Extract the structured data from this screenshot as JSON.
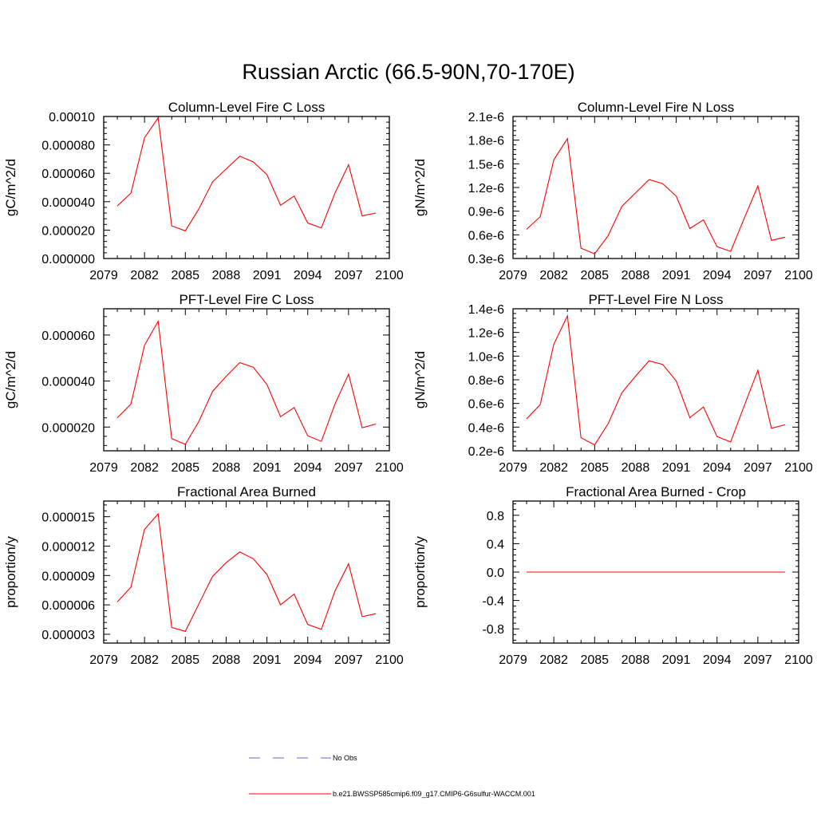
{
  "figure_title": "Russian Arctic (66.5-90N,70-170E)",
  "colors": {
    "series": "#ff0000",
    "no_obs": "#6666cc",
    "axis": "#000000"
  },
  "legend": [
    {
      "label": "No Obs",
      "style": "dashed",
      "color": "#6666cc"
    },
    {
      "label": "b.e21.BWSSP585cmip6.f09_g17.CMIP6-G6sulfur-WACCM.001",
      "style": "solid",
      "color": "#ff0000"
    }
  ],
  "chart_data": [
    {
      "type": "line",
      "title": "Column-Level Fire C Loss",
      "ylabel": "gC/m^2/d",
      "xlim": [
        2079,
        2100
      ],
      "ylim": [
        0,
        0.0001
      ],
      "xticks": [
        "2079",
        "2082",
        "2085",
        "2088",
        "2091",
        "2094",
        "2097",
        "2100"
      ],
      "yticks": [
        {
          "v": 0,
          "label": "0.000000"
        },
        {
          "v": 2e-05,
          "label": "0.000020"
        },
        {
          "v": 4e-05,
          "label": "0.000040"
        },
        {
          "v": 6e-05,
          "label": "0.000060"
        },
        {
          "v": 8e-05,
          "label": "0.000080"
        },
        {
          "v": 0.0001,
          "label": "0.00010"
        }
      ],
      "x": [
        2080,
        2081,
        2082,
        2083,
        2084,
        2085,
        2086,
        2087,
        2088,
        2089,
        2090,
        2091,
        2092,
        2093,
        2094,
        2095,
        2096,
        2097,
        2098,
        2099
      ],
      "series": [
        {
          "values": [
            3.7e-05,
            4.6e-05,
            8.5e-05,
            9.9e-05,
            2.3e-05,
            1.95e-05,
            3.5e-05,
            5.4e-05,
            6.3e-05,
            7.2e-05,
            6.8e-05,
            5.9e-05,
            3.75e-05,
            4.4e-05,
            2.5e-05,
            2.15e-05,
            4.6e-05,
            6.6e-05,
            3e-05,
            3.2e-05
          ]
        }
      ]
    },
    {
      "type": "line",
      "title": "Column-Level Fire N Loss",
      "ylabel": "gN/m^2/d",
      "xlim": [
        2079,
        2100
      ],
      "ylim": [
        3e-07,
        2.1e-06
      ],
      "xticks": [
        "2079",
        "2082",
        "2085",
        "2088",
        "2091",
        "2094",
        "2097",
        "2100"
      ],
      "yticks": [
        {
          "v": 3e-07,
          "label": "0.3e-6"
        },
        {
          "v": 6e-07,
          "label": "0.6e-6"
        },
        {
          "v": 9e-07,
          "label": "0.9e-6"
        },
        {
          "v": 1.2e-06,
          "label": "1.2e-6"
        },
        {
          "v": 1.5e-06,
          "label": "1.5e-6"
        },
        {
          "v": 1.8e-06,
          "label": "1.8e-6"
        },
        {
          "v": 2.1e-06,
          "label": "2.1e-6"
        }
      ],
      "x": [
        2080,
        2081,
        2082,
        2083,
        2084,
        2085,
        2086,
        2087,
        2088,
        2089,
        2090,
        2091,
        2092,
        2093,
        2094,
        2095,
        2096,
        2097,
        2098,
        2099
      ],
      "series": [
        {
          "values": [
            6.7e-07,
            8.3e-07,
            1.55e-06,
            1.82e-06,
            4.3e-07,
            3.6e-07,
            5.9e-07,
            9.6e-07,
            1.13e-06,
            1.3e-06,
            1.25e-06,
            1.09e-06,
            6.8e-07,
            7.9e-07,
            4.5e-07,
            3.9e-07,
            8.1e-07,
            1.22e-06,
            5.3e-07,
            5.7e-07
          ]
        }
      ]
    },
    {
      "type": "line",
      "title": "PFT-Level Fire C Loss",
      "ylabel": "gC/m^2/d",
      "xlim": [
        2079,
        2100
      ],
      "ylim": [
        9.7e-06,
        7.14e-05
      ],
      "xticks": [
        "2079",
        "2082",
        "2085",
        "2088",
        "2091",
        "2094",
        "2097",
        "2100"
      ],
      "yticks": [
        {
          "v": 2e-05,
          "label": "0.000020"
        },
        {
          "v": 4e-05,
          "label": "0.000040"
        },
        {
          "v": 6e-05,
          "label": "0.000060"
        }
      ],
      "x": [
        2080,
        2081,
        2082,
        2083,
        2084,
        2085,
        2086,
        2087,
        2088,
        2089,
        2090,
        2091,
        2092,
        2093,
        2094,
        2095,
        2096,
        2097,
        2098,
        2099
      ],
      "series": [
        {
          "values": [
            2.4e-05,
            3e-05,
            5.55e-05,
            6.6e-05,
            1.5e-05,
            1.25e-05,
            2.25e-05,
            3.55e-05,
            4.2e-05,
            4.8e-05,
            4.6e-05,
            3.85e-05,
            2.45e-05,
            2.85e-05,
            1.62e-05,
            1.38e-05,
            3e-05,
            4.3e-05,
            1.97e-05,
            2.13e-05
          ]
        }
      ]
    },
    {
      "type": "line",
      "title": "PFT-Level Fire N Loss",
      "ylabel": "gN/m^2/d",
      "xlim": [
        2079,
        2100
      ],
      "ylim": [
        2e-07,
        1.4e-06
      ],
      "xticks": [
        "2079",
        "2082",
        "2085",
        "2088",
        "2091",
        "2094",
        "2097",
        "2100"
      ],
      "yticks": [
        {
          "v": 2e-07,
          "label": "0.2e-6"
        },
        {
          "v": 4e-07,
          "label": "0.4e-6"
        },
        {
          "v": 6e-07,
          "label": "0.6e-6"
        },
        {
          "v": 8e-07,
          "label": "0.8e-6"
        },
        {
          "v": 1e-06,
          "label": "1.0e-6"
        },
        {
          "v": 1.2e-06,
          "label": "1.2e-6"
        },
        {
          "v": 1.4e-06,
          "label": "1.4e-6"
        }
      ],
      "x": [
        2080,
        2081,
        2082,
        2083,
        2084,
        2085,
        2086,
        2087,
        2088,
        2089,
        2090,
        2091,
        2092,
        2093,
        2094,
        2095,
        2096,
        2097,
        2098,
        2099
      ],
      "series": [
        {
          "values": [
            4.7e-07,
            5.9e-07,
            1.1e-06,
            1.34e-06,
            3.1e-07,
            2.5e-07,
            4.3e-07,
            6.9e-07,
            8.3e-07,
            9.6e-07,
            9.3e-07,
            7.9e-07,
            4.8e-07,
            5.7e-07,
            3.2e-07,
            2.75e-07,
            5.8e-07,
            8.8e-07,
            3.9e-07,
            4.2e-07
          ]
        }
      ]
    },
    {
      "type": "line",
      "title": "Fractional Area Burned",
      "ylabel": "proportion/y",
      "xlim": [
        2079,
        2100
      ],
      "ylim": [
        2.1e-06,
        1.66e-05
      ],
      "xticks": [
        "2079",
        "2082",
        "2085",
        "2088",
        "2091",
        "2094",
        "2097",
        "2100"
      ],
      "yticks": [
        {
          "v": 3e-06,
          "label": "0.000003"
        },
        {
          "v": 6e-06,
          "label": "0.000006"
        },
        {
          "v": 9e-06,
          "label": "0.000009"
        },
        {
          "v": 1.2e-05,
          "label": "0.000012"
        },
        {
          "v": 1.5e-05,
          "label": "0.000015"
        }
      ],
      "x": [
        2080,
        2081,
        2082,
        2083,
        2084,
        2085,
        2086,
        2087,
        2088,
        2089,
        2090,
        2091,
        2092,
        2093,
        2094,
        2095,
        2096,
        2097,
        2098,
        2099
      ],
      "series": [
        {
          "values": [
            6.3e-06,
            7.8e-06,
            1.37e-05,
            1.53e-05,
            3.7e-06,
            3.3e-06,
            6.1e-06,
            8.9e-06,
            1.03e-05,
            1.14e-05,
            1.07e-05,
            9.1e-06,
            6e-06,
            7.1e-06,
            4e-06,
            3.5e-06,
            7.4e-06,
            1.02e-05,
            4.8e-06,
            5.1e-06
          ]
        }
      ]
    },
    {
      "type": "line",
      "title": "Fractional Area Burned - Crop",
      "ylabel": "proportion/y",
      "xlim": [
        2079,
        2100
      ],
      "ylim": [
        -1,
        1
      ],
      "xticks": [
        "2079",
        "2082",
        "2085",
        "2088",
        "2091",
        "2094",
        "2097",
        "2100"
      ],
      "yticks": [
        {
          "v": -0.8,
          "label": "-0.8"
        },
        {
          "v": -0.4,
          "label": "-0.4"
        },
        {
          "v": 0,
          "label": "0.0"
        },
        {
          "v": 0.4,
          "label": "0.4"
        },
        {
          "v": 0.8,
          "label": "0.8"
        }
      ],
      "x": [
        2080,
        2081,
        2082,
        2083,
        2084,
        2085,
        2086,
        2087,
        2088,
        2089,
        2090,
        2091,
        2092,
        2093,
        2094,
        2095,
        2096,
        2097,
        2098,
        2099
      ],
      "series": [
        {
          "values": [
            0,
            0,
            0,
            0,
            0,
            0,
            0,
            0,
            0,
            0,
            0,
            0,
            0,
            0,
            0,
            0,
            0,
            0,
            0,
            0
          ]
        }
      ]
    }
  ]
}
